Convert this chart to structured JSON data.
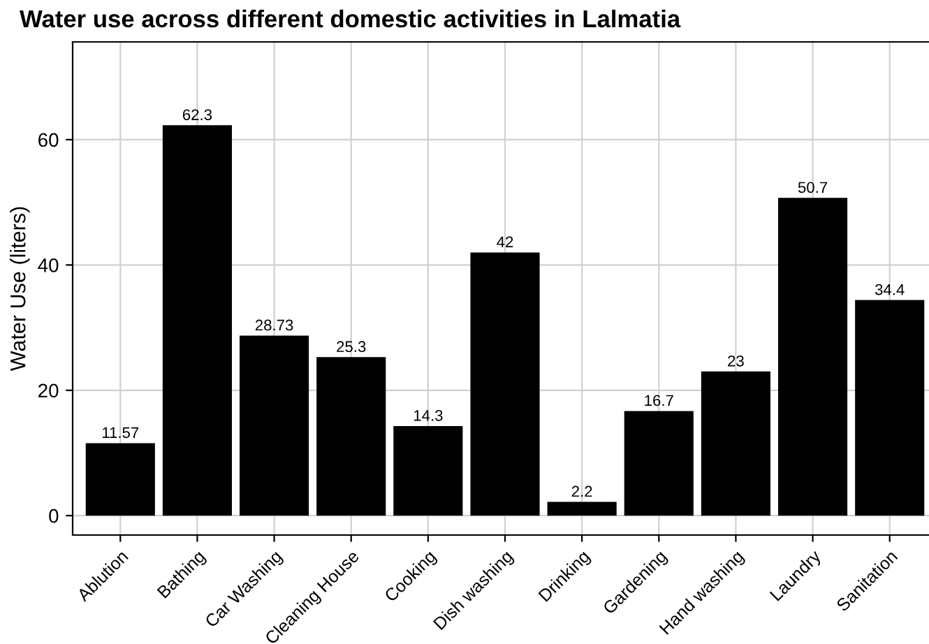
{
  "chart_data": {
    "type": "bar",
    "title": "Water use across different domestic activities in Lalmatia",
    "ylabel": "Water Use (liters)",
    "categories": [
      "Ablution",
      "Bathing",
      "Car Washing",
      "Cleaning House",
      "Cooking",
      "Dish washing",
      "Drinking",
      "Gardening",
      "Hand washing",
      "Laundry",
      "Sanitation"
    ],
    "values": [
      11.57,
      62.3,
      28.73,
      25.3,
      14.3,
      42,
      2.2,
      16.7,
      23,
      50.7,
      34.4
    ],
    "color": "#000000",
    "ylim": [
      -3.1,
      75.6
    ],
    "yticks": [
      0,
      20,
      40,
      60
    ],
    "grid": true,
    "data_labels": true
  }
}
